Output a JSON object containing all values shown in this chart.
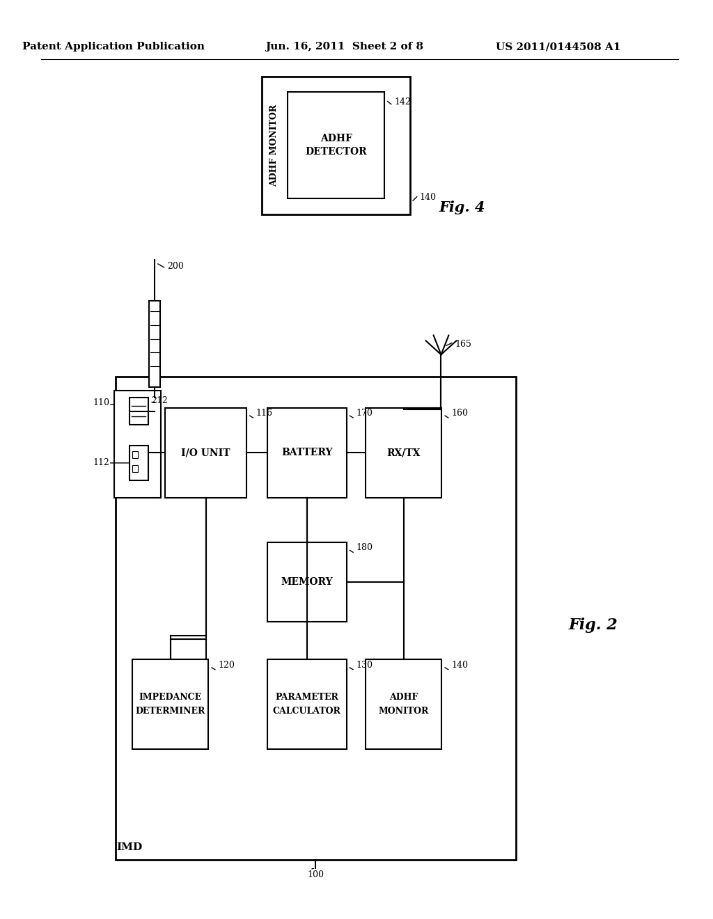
{
  "header_left": "Patent Application Publication",
  "header_center": "Jun. 16, 2011  Sheet 2 of 8",
  "header_right": "US 2011/0144508 A1",
  "fig2_label": "Fig. 2",
  "fig4_label": "Fig. 4",
  "bg_color": "#ffffff"
}
